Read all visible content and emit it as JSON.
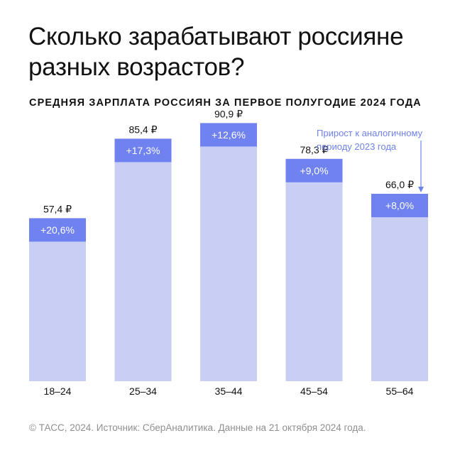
{
  "title_line1": "Сколько зарабатывают россияне",
  "title_line2": "разных возрастов?",
  "subtitle": "СРЕДНЯЯ ЗАРПЛАТА РОССИЯН ЗА ПЕРВОЕ ПОЛУГОДИЕ 2024 ГОДА",
  "annotation_line1": "Прирост к аналогичному",
  "annotation_line2": "периоду 2023 года",
  "source": "© ТАСС, 2024. Источник: СберАналитика. Данные на 21 октября 2024 года.",
  "colors": {
    "bar": "#c9cff4",
    "growth": "#6f82ef",
    "growth_text": "#ffffff",
    "annotation": "#6f82ef"
  },
  "chart_data": {
    "type": "bar",
    "title": "СРЕДНЯЯ ЗАРПЛАТА РОССИЯН ЗА ПЕРВОЕ ПОЛУГОДИЕ 2024 ГОДА",
    "categories": [
      "18–24",
      "25–34",
      "35–44",
      "45–54",
      "55–64"
    ],
    "values": [
      57.4,
      85.4,
      90.9,
      78.3,
      66.0
    ],
    "value_labels": [
      "57,4 ₽",
      "85,4 ₽",
      "90,9 ₽",
      "78,3 ₽",
      "66,0 ₽"
    ],
    "growth_pct": [
      20.6,
      17.3,
      12.6,
      9.0,
      8.0
    ],
    "growth_labels": [
      "+20,6%",
      "+17,3%",
      "+12,6%",
      "+9,0%",
      "+8,0%"
    ],
    "xlabel": "",
    "ylabel": "",
    "ylim": [
      0,
      100
    ],
    "grid": false
  }
}
